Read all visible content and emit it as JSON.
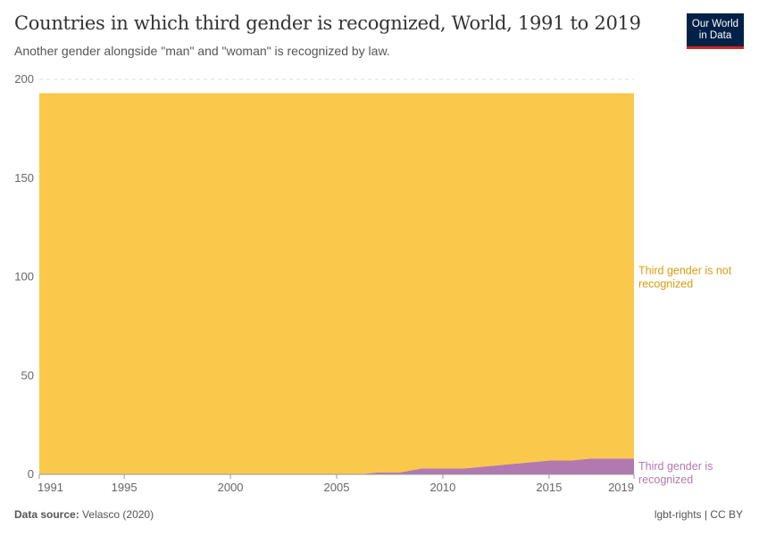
{
  "header": {
    "title": "Countries in which third gender is recognized, World, 1991 to 2019",
    "subtitle": "Another gender alongside \"man\" and \"woman\" is recognized by law.",
    "logo": "Our World in Data",
    "logo_line1": "Our World",
    "logo_line2": "in Data"
  },
  "footer": {
    "source_label": "Data source:",
    "source": "Velasco (2020)",
    "license": "lgbt-rights | CC BY"
  },
  "chart_data": {
    "type": "area",
    "stacked": true,
    "title": "Countries in which third gender is recognized, World, 1991 to 2019",
    "xlim": [
      1991,
      2019
    ],
    "ylim": [
      0,
      200
    ],
    "x_ticks": [
      "1991",
      "1995",
      "2000",
      "2005",
      "2010",
      "2015",
      "2019"
    ],
    "y_ticks": [
      "0",
      "50",
      "100",
      "150",
      "200"
    ],
    "grid": "horizontal dashed",
    "x": [
      1991,
      1992,
      1993,
      1994,
      1995,
      1996,
      1997,
      1998,
      1999,
      2000,
      2001,
      2002,
      2003,
      2004,
      2005,
      2006,
      2007,
      2008,
      2009,
      2010,
      2011,
      2012,
      2013,
      2014,
      2015,
      2016,
      2017,
      2018,
      2019
    ],
    "series": [
      {
        "name": "Third gender is recognized",
        "color": "#b279b0",
        "values": [
          0,
          0,
          0,
          0,
          0,
          0,
          0,
          0,
          0,
          0,
          0,
          0,
          0,
          0,
          0,
          0,
          1,
          1,
          3,
          3,
          3,
          4,
          5,
          6,
          7,
          7,
          8,
          8,
          8
        ]
      },
      {
        "name": "Third gender is not recognized",
        "color": "#fac84b",
        "label_color": "#d79c0d",
        "values": [
          193,
          193,
          193,
          193,
          193,
          193,
          193,
          193,
          193,
          193,
          193,
          193,
          193,
          193,
          193,
          193,
          192,
          192,
          190,
          190,
          190,
          189,
          188,
          187,
          186,
          186,
          185,
          185,
          185
        ]
      }
    ]
  }
}
